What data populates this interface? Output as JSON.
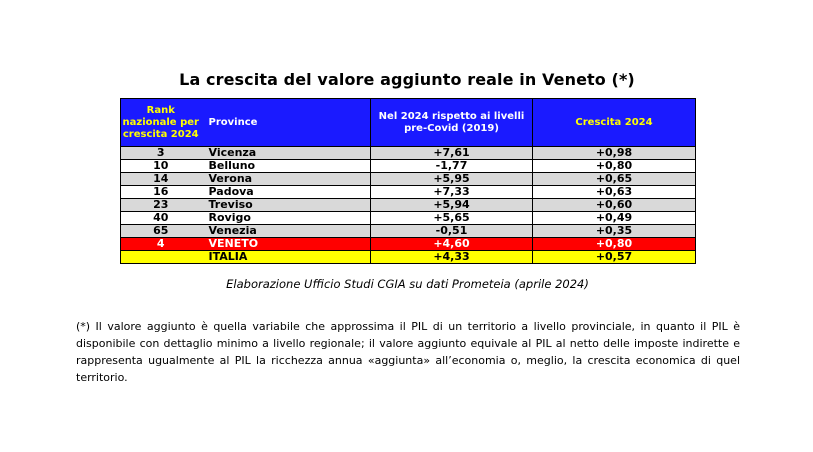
{
  "title": "La crescita del valore aggiunto reale in Veneto (*)",
  "table": {
    "headers": {
      "rank": "Rank nazionale per crescita 2024",
      "province": "Province",
      "vs_precovid": "Nel 2024 rispetto ai livelli pre-Covid (2019)",
      "growth": "Crescita 2024"
    },
    "rows": [
      {
        "rank": "3",
        "province": "Vicenza",
        "vs_precovid": "+7,61",
        "growth": "+0,98"
      },
      {
        "rank": "10",
        "province": "Belluno",
        "vs_precovid": "-1,77",
        "growth": "+0,80"
      },
      {
        "rank": "14",
        "province": "Verona",
        "vs_precovid": "+5,95",
        "growth": "+0,65"
      },
      {
        "rank": "16",
        "province": "Padova",
        "vs_precovid": "+7,33",
        "growth": "+0,63"
      },
      {
        "rank": "23",
        "province": "Treviso",
        "vs_precovid": "+5,94",
        "growth": "+0,60"
      },
      {
        "rank": "40",
        "province": "Rovigo",
        "vs_precovid": "+5,65",
        "growth": "+0,49"
      },
      {
        "rank": "65",
        "province": "Venezia",
        "vs_precovid": "-0,51",
        "growth": "+0,35"
      },
      {
        "rank": "4",
        "province": "VENETO",
        "vs_precovid": "+4,60",
        "growth": "+0,80"
      },
      {
        "rank": "",
        "province": "ITALIA",
        "vs_precovid": "+4,33",
        "growth": "+0,57"
      }
    ]
  },
  "colors": {
    "header_bg": "#1a1aff",
    "header_text_yellow": "#ffff00",
    "row_grey": "#d9d9d9",
    "veneto_row": "#ff0000",
    "italia_row": "#ffff00"
  },
  "source": "Elaborazione Ufficio Studi CGIA su dati Prometeia (aprile 2024)",
  "note": "(*) Il valore aggiunto è quella variabile che approssima il PIL di un territorio a livello provinciale, in quanto il PIL è disponibile con dettaglio minimo a livello regionale; il valore aggiunto equivale al PIL al netto delle imposte indirette e rappresenta ugualmente al PIL la ricchezza annua «aggiunta» all’economia o, meglio, la crescita economica di quel territorio."
}
